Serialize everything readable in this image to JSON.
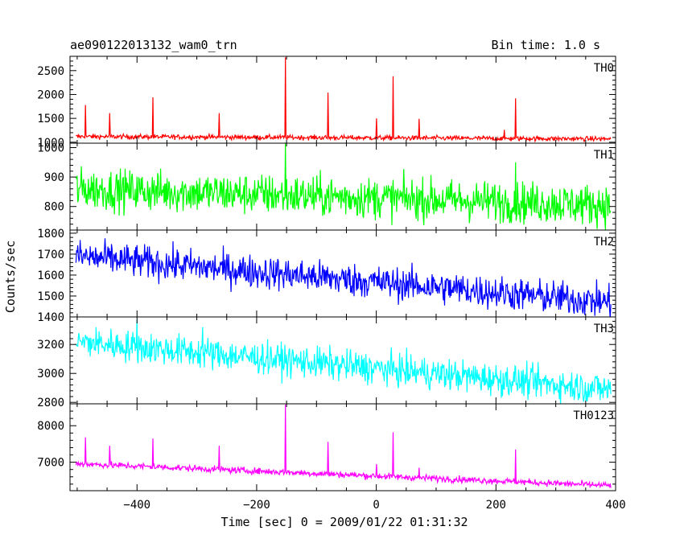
{
  "header": {
    "title": "ae090122013132_wam0_trn",
    "bin_time": "Bin time: 1.0 s"
  },
  "axes": {
    "xlabel": "Time [sec] 0 = 2009/01/22 01:31:32",
    "ylabel": "Counts/sec"
  },
  "chart_data": {
    "type": "line",
    "x_range": [
      -512,
      400
    ],
    "x_ticks": [
      -400,
      -200,
      0,
      200,
      400
    ],
    "x_tick_labels": [
      "−400",
      "−200",
      "0",
      "200",
      "400"
    ],
    "panels": [
      {
        "name": "TH0",
        "color": "#ff0000",
        "ylim": [
          980,
          2800
        ],
        "y_ticks": [
          1000,
          1500,
          2000,
          2500
        ],
        "baseline_start": 1120,
        "baseline_end": 1070,
        "noise": 25,
        "spikes": [
          [
            -486,
            1780
          ],
          [
            -446,
            1610
          ],
          [
            -373,
            1940
          ],
          [
            -263,
            1610
          ],
          [
            -152,
            2780
          ],
          [
            -81,
            2040
          ],
          [
            0,
            1500
          ],
          [
            28,
            2380
          ],
          [
            72,
            1490
          ],
          [
            214,
            1260
          ],
          [
            233,
            1920
          ]
        ]
      },
      {
        "name": "TH1",
        "color": "#00ff00",
        "ylim": [
          720,
          1015
        ],
        "y_ticks": [
          800,
          900,
          1000
        ],
        "baseline_start": 860,
        "baseline_end": 805,
        "noise": 35,
        "spikes": [
          [
            -152,
            1015
          ],
          [
            233,
            950
          ]
        ]
      },
      {
        "name": "TH2",
        "color": "#0000ff",
        "ylim": [
          1400,
          1815
        ],
        "y_ticks": [
          1400,
          1500,
          1600,
          1700,
          1800
        ],
        "baseline_start": 1690,
        "baseline_end": 1470,
        "noise": 40,
        "spikes": []
      },
      {
        "name": "TH3",
        "color": "#00ffff",
        "ylim": [
          2790,
          3390
        ],
        "y_ticks": [
          2800,
          3000,
          3200
        ],
        "baseline_start": 3220,
        "baseline_end": 2890,
        "noise": 55,
        "spikes": [
          [
            -400,
            3370
          ],
          [
            -290,
            3320
          ]
        ]
      },
      {
        "name": "TH0123",
        "color": "#ff00ff",
        "ylim": [
          6220,
          8600
        ],
        "y_ticks": [
          7000,
          8000
        ],
        "baseline_start": 6960,
        "baseline_end": 6360,
        "noise": 45,
        "spikes": [
          [
            -486,
            7680
          ],
          [
            -446,
            7450
          ],
          [
            -373,
            7650
          ],
          [
            -263,
            7450
          ],
          [
            -152,
            8580
          ],
          [
            -81,
            7560
          ],
          [
            0,
            6950
          ],
          [
            28,
            7820
          ],
          [
            72,
            6850
          ],
          [
            233,
            7350
          ]
        ]
      }
    ]
  }
}
